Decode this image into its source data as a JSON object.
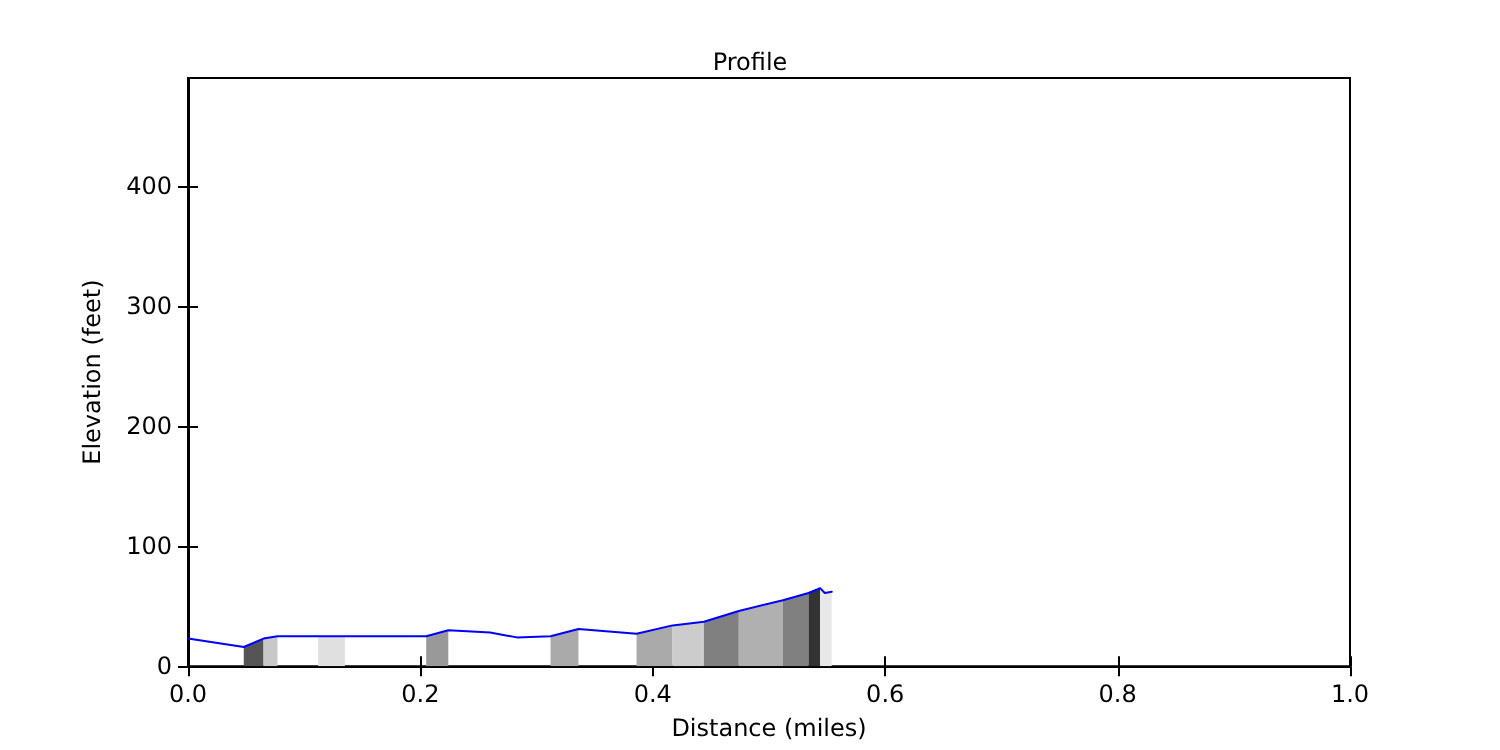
{
  "chart_data": {
    "type": "line",
    "title": "Profile",
    "xlabel": "Distance (miles)",
    "ylabel": "Elevation (feet)",
    "xlim": [
      0,
      1
    ],
    "xticks": [
      {
        "value": 0,
        "label": "0.0"
      },
      {
        "value": 0.2,
        "label": "0.2"
      },
      {
        "value": 0.4,
        "label": "0.4"
      },
      {
        "value": 0.6,
        "label": "0.6"
      },
      {
        "value": 0.8,
        "label": "0.8"
      },
      {
        "value": 1,
        "label": "1.0"
      }
    ],
    "ylim": [
      0,
      490
    ],
    "yticks": [
      0,
      100,
      200,
      300,
      400
    ],
    "grid": false,
    "marker": "none",
    "line_style": "solid",
    "series": [
      {
        "type": "area",
        "color": "#555555",
        "x": [
          0.048,
          0.065
        ],
        "values": [
          16,
          23
        ]
      },
      {
        "type": "area",
        "color": "#c8c8c8",
        "x": [
          0.065,
          0.077
        ],
        "values": [
          23,
          25
        ]
      },
      {
        "type": "area",
        "color": "#e0e0e0",
        "x": [
          0.112,
          0.135
        ],
        "values": [
          25,
          25
        ]
      },
      {
        "type": "area",
        "color": "#999999",
        "x": [
          0.205,
          0.224
        ],
        "values": [
          25,
          30
        ]
      },
      {
        "type": "area",
        "color": "#aaaaaa",
        "x": [
          0.312,
          0.336
        ],
        "values": [
          25,
          31
        ]
      },
      {
        "type": "area",
        "color": "#aaaaaa",
        "x": [
          0.386,
          0.417
        ],
        "values": [
          27,
          34
        ]
      },
      {
        "type": "area",
        "color": "#cccccc",
        "x": [
          0.417,
          0.444
        ],
        "values": [
          34,
          37
        ]
      },
      {
        "type": "area",
        "color": "#808080",
        "x": [
          0.444,
          0.474
        ],
        "values": [
          37,
          46
        ]
      },
      {
        "type": "area",
        "color": "#b0b0b0",
        "x": [
          0.474,
          0.512
        ],
        "values": [
          46,
          55
        ]
      },
      {
        "type": "area",
        "color": "#808080",
        "x": [
          0.512,
          0.534
        ],
        "values": [
          55,
          61
        ]
      },
      {
        "type": "area",
        "color": "#333333",
        "x": [
          0.534,
          0.544
        ],
        "values": [
          61,
          65
        ]
      },
      {
        "type": "area",
        "color": "#e8e8e8",
        "x": [
          0.544,
          0.548,
          0.554
        ],
        "values": [
          65,
          61,
          62
        ]
      },
      {
        "color": "#0000ff",
        "x": [
          0,
          0.048,
          0.065,
          0.077,
          0.112,
          0.135,
          0.205,
          0.224,
          0.26,
          0.283,
          0.312,
          0.336,
          0.386,
          0.417,
          0.444,
          0.474,
          0.512,
          0.534,
          0.544,
          0.548,
          0.554
        ],
        "values": [
          23,
          16,
          23,
          25,
          25,
          25,
          25,
          30,
          28,
          24,
          25,
          31,
          27,
          34,
          37,
          46,
          55,
          61,
          65,
          61,
          62
        ]
      }
    ]
  }
}
